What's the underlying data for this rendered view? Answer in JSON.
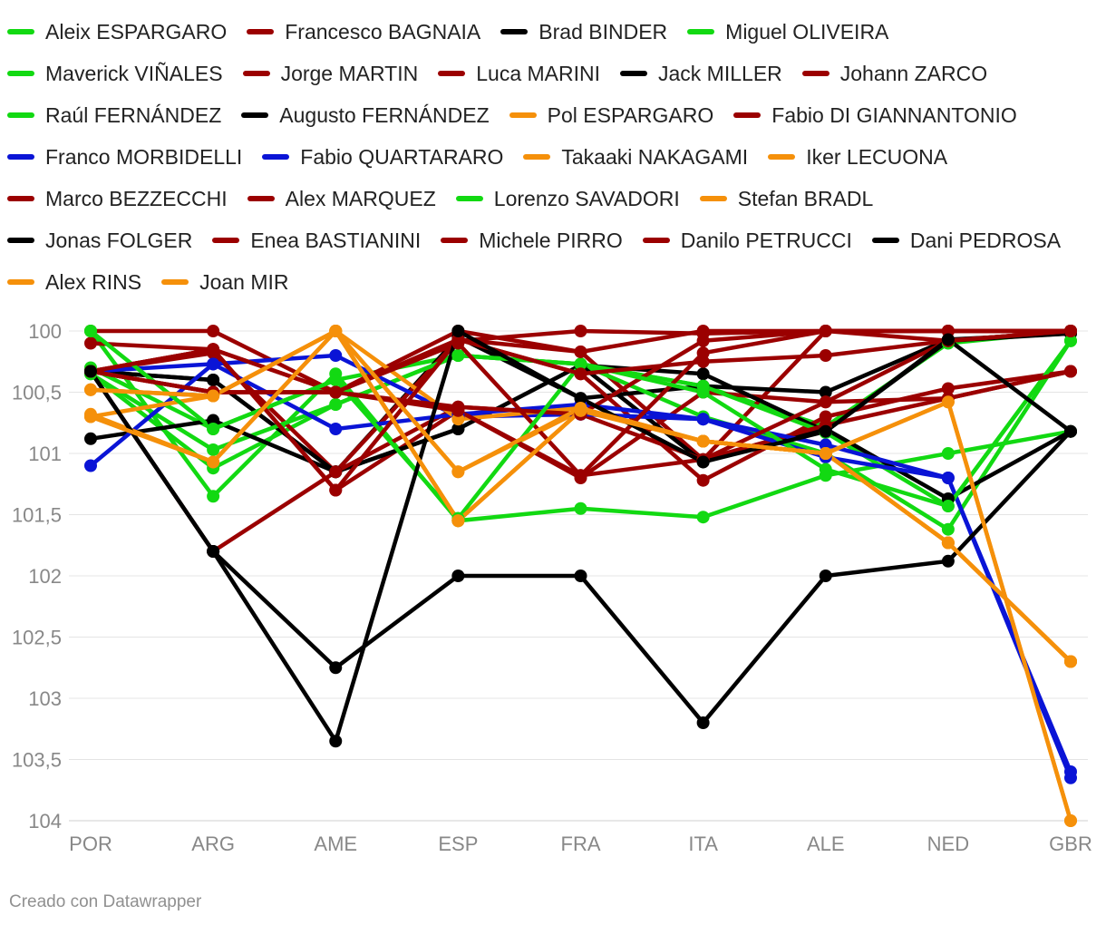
{
  "chart_data": {
    "type": "line",
    "x": [
      "POR",
      "ARG",
      "AME",
      "ESP",
      "FRA",
      "ITA",
      "ALE",
      "NED",
      "GBR"
    ],
    "y_ticks": [
      "100",
      "100,5",
      "101",
      "101,5",
      "102",
      "102,5",
      "103",
      "103,5",
      "104"
    ],
    "y_tick_values": [
      100,
      100.5,
      101,
      101.5,
      102,
      102.5,
      103,
      103.5,
      104
    ],
    "ylim": [
      100,
      104
    ],
    "y_reversed": true,
    "colors": {
      "green": "#12d912",
      "red": "#9b0000",
      "black": "#000000",
      "orange": "#f5900a",
      "blue": "#0a14d6"
    },
    "series": [
      {
        "name": "Aleix ESPARGARO",
        "color": "#12d912",
        "values": [
          100.3,
          100.8,
          100.4,
          100.2,
          100.27,
          100.45,
          100.78,
          100.1,
          100.0
        ]
      },
      {
        "name": "Francesco BAGNAIA",
        "color": "#9b0000",
        "values": [
          100.0,
          100.0,
          100.5,
          100.0,
          100.17,
          101.05,
          100.0,
          100.0,
          100.0
        ]
      },
      {
        "name": "Brad BINDER",
        "color": "#000000",
        "values": [
          100.33,
          100.4,
          101.15,
          100.05,
          100.55,
          100.45,
          100.5,
          100.07,
          100.02
        ]
      },
      {
        "name": "Miguel OLIVEIRA",
        "color": "#12d912",
        "values": [
          100.0,
          101.35,
          100.35,
          101.55,
          101.45,
          101.52,
          101.18,
          101.0,
          100.82
        ]
      },
      {
        "name": "Maverick VIÑALES",
        "color": "#12d912",
        "values": [
          100.35,
          101.12,
          100.6,
          100.2,
          100.27,
          100.7,
          101.0,
          101.62,
          100.08
        ]
      },
      {
        "name": "Jorge MARTIN",
        "color": "#9b0000",
        "values": [
          100.33,
          100.15,
          101.3,
          100.65,
          101.2,
          100.5,
          100.58,
          100.08,
          100.0
        ]
      },
      {
        "name": "Luca MARINI",
        "color": "#9b0000",
        "values": [
          100.33,
          100.18,
          101.15,
          100.07,
          100.35,
          101.22,
          100.7,
          100.47,
          100.33
        ]
      },
      {
        "name": "Jack MILLER",
        "color": "#000000",
        "values": [
          100.33,
          100.4,
          101.15,
          100.8,
          100.28,
          100.35,
          100.82,
          100.08,
          100.02
        ]
      },
      {
        "name": "Johann ZARCO",
        "color": "#9b0000",
        "values": [
          100.1,
          100.15,
          100.5,
          100.08,
          100.0,
          100.02,
          100.0,
          100.0,
          100.0
        ]
      },
      {
        "name": "Raúl FERNÁNDEZ",
        "color": "#12d912",
        "values": [
          100.35,
          100.97,
          100.6,
          100.2,
          100.27,
          100.45,
          100.83,
          101.43,
          100.08
        ]
      },
      {
        "name": "Augusto FERNÁNDEZ",
        "color": "#000000",
        "values": [
          100.88,
          100.73,
          101.15,
          100.8,
          100.28,
          101.07,
          100.8,
          101.37,
          100.82
        ]
      },
      {
        "name": "Pol ESPARGARO",
        "color": "#f5900a",
        "values": [
          100.48,
          100.53,
          100.0,
          101.15,
          100.65,
          100.9,
          101.0,
          101.73,
          102.7
        ]
      },
      {
        "name": "Fabio DI GIANNANTONIO",
        "color": "#9b0000",
        "values": [
          100.33,
          101.8,
          101.15,
          100.62,
          100.68,
          101.05,
          100.77,
          100.55,
          100.33
        ]
      },
      {
        "name": "Franco MORBIDELLI",
        "color": "#0a14d6",
        "values": [
          101.1,
          100.27,
          100.2,
          100.7,
          100.68,
          100.72,
          100.93,
          101.2,
          103.6
        ]
      },
      {
        "name": "Fabio QUARTARARO",
        "color": "#0a14d6",
        "values": [
          100.33,
          100.27,
          100.8,
          100.68,
          100.6,
          100.72,
          101.03,
          101.2,
          103.65
        ]
      },
      {
        "name": "Takaaki NAKAGAMI",
        "color": "#f5900a",
        "values": [
          100.68,
          101.07,
          100.0,
          100.72,
          100.63,
          100.9,
          101.0,
          100.58,
          104.0
        ]
      },
      {
        "name": "Iker LECUONA",
        "color": "#f5900a",
        "values": [
          100.7,
          100.53,
          100.0,
          101.55,
          100.65,
          100.9,
          101.0,
          101.73,
          102.7
        ]
      },
      {
        "name": "Marco BEZZECCHI",
        "color": "#9b0000",
        "values": [
          100.33,
          100.5,
          100.5,
          100.1,
          101.18,
          100.18,
          100.0,
          100.08,
          100.0
        ]
      },
      {
        "name": "Alex MARQUEZ",
        "color": "#9b0000",
        "values": [
          100.33,
          100.15,
          100.5,
          100.62,
          100.68,
          100.08,
          100.0,
          100.0,
          100.0
        ]
      },
      {
        "name": "Lorenzo SAVADORI",
        "color": "#12d912",
        "values": [
          100.0,
          100.8,
          100.4,
          101.53,
          100.27,
          100.5,
          101.13,
          101.43,
          100.08
        ]
      },
      {
        "name": "Stefan BRADL",
        "color": "#f5900a",
        "values": [
          100.48,
          100.53,
          100.0,
          101.55,
          100.65,
          100.9,
          101.0,
          101.73,
          102.7
        ]
      },
      {
        "name": "Jonas FOLGER",
        "color": "#000000",
        "values": [
          100.33,
          101.8,
          102.75,
          102.0,
          102.0,
          103.2,
          102.0,
          101.88,
          100.82
        ]
      },
      {
        "name": "Enea BASTIANINI",
        "color": "#9b0000",
        "values": [
          100.33,
          100.15,
          101.3,
          100.07,
          100.35,
          100.25,
          100.2,
          100.08,
          100.0
        ]
      },
      {
        "name": "Michele PIRRO",
        "color": "#9b0000",
        "values": [
          100.33,
          100.5,
          100.5,
          100.65,
          101.18,
          101.05,
          100.58,
          100.55,
          100.33
        ]
      },
      {
        "name": "Danilo PETRUCCI",
        "color": "#9b0000",
        "values": [
          100.33,
          100.5,
          100.5,
          100.07,
          100.17,
          100.0,
          100.0,
          100.0,
          100.0
        ]
      },
      {
        "name": "Dani PEDROSA",
        "color": "#000000",
        "values": [
          100.33,
          101.8,
          103.35,
          100.0,
          100.55,
          101.07,
          100.82,
          100.07,
          100.82
        ]
      },
      {
        "name": "Alex RINS",
        "color": "#f5900a",
        "values": [
          100.48,
          100.53,
          100.0,
          101.55,
          100.65,
          100.9,
          101.0,
          100.58,
          104.0
        ]
      },
      {
        "name": "Joan MIR",
        "color": "#f5900a",
        "values": [
          100.7,
          101.07,
          100.0,
          101.15,
          100.63,
          100.9,
          101.0,
          101.73,
          102.7
        ]
      }
    ],
    "highlight_lines": [
      {
        "name": "Jonas FOLGER",
        "values": [
          100.33,
          101.8,
          102.75,
          102.0,
          102.0,
          103.2,
          102.0,
          101.88,
          null
        ]
      },
      {
        "name": "Dani PEDROSA",
        "values": [
          100.33,
          101.8,
          103.35,
          100.0,
          100.55,
          101.07,
          100.82,
          100.07,
          null
        ]
      }
    ]
  },
  "footer": {
    "credit": "Creado con Datawrapper"
  }
}
